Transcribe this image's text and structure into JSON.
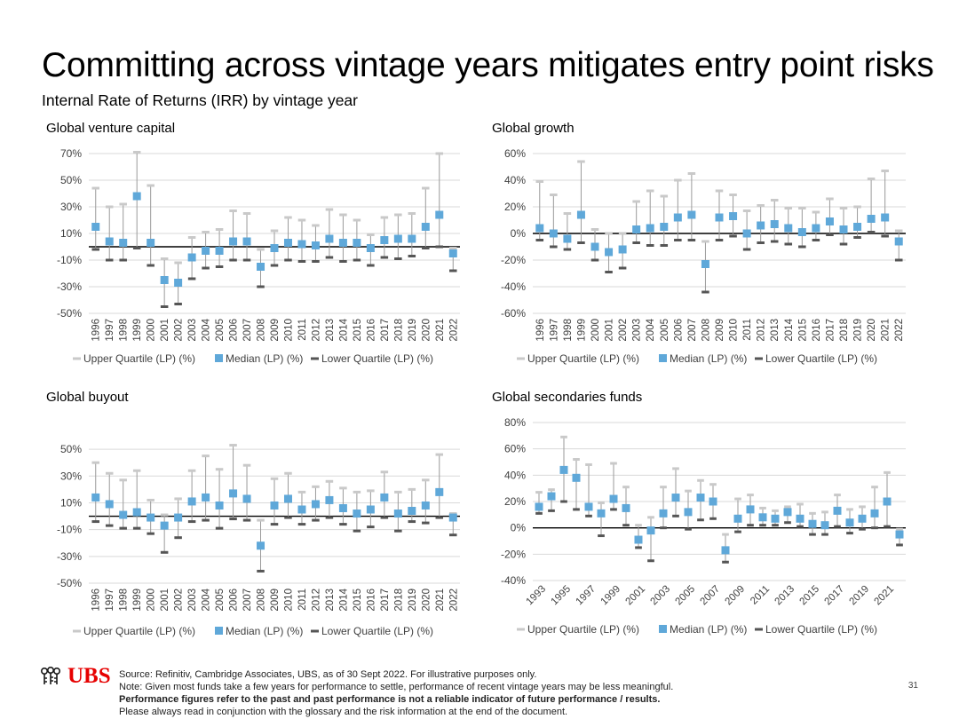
{
  "header": {
    "title": "Committing across vintage years mitigates entry point risks",
    "subtitle": "Internal Rate of Returns (IRR) by vintage year"
  },
  "legend": {
    "upper": "Upper Quartile (LP) (%)",
    "median": "Median (LP) (%)",
    "lower": "Lower Quartile (LP) (%)"
  },
  "colors": {
    "upper": "#c9c9c9",
    "median": "#5fa8d9",
    "lower": "#555555",
    "grid": "#d9d9d9",
    "zero": "#000000",
    "brand": "#e60000"
  },
  "chart_data": [
    {
      "id": "vc",
      "type": "scatter",
      "title": "Global venture capital",
      "categories": [
        "1996",
        "1997",
        "1998",
        "1999",
        "2000",
        "2001",
        "2002",
        "2003",
        "2004",
        "2005",
        "2006",
        "2007",
        "2008",
        "2009",
        "2010",
        "2011",
        "2012",
        "2013",
        "2014",
        "2015",
        "2016",
        "2017",
        "2018",
        "2019",
        "2020",
        "2021",
        "2022"
      ],
      "y_ticks": [
        -50,
        -30,
        -10,
        10,
        30,
        50,
        70
      ],
      "y_tick_labels": [
        "-50%",
        "-30%",
        "-10%",
        "10%",
        "30%",
        "50%",
        "70%"
      ],
      "ylim": [
        -50,
        70
      ],
      "series": [
        {
          "name": "Upper Quartile (LP) (%)",
          "values": [
            44,
            30,
            32,
            71,
            46,
            -9,
            -12,
            7,
            11,
            13,
            27,
            25,
            -2,
            12,
            22,
            20,
            16,
            28,
            24,
            20,
            9,
            22,
            24,
            25,
            44,
            70,
            -1
          ]
        },
        {
          "name": "Median (LP) (%)",
          "values": [
            15,
            4,
            3,
            38,
            3,
            -25,
            -27,
            -8,
            -3,
            -3,
            4,
            4,
            -15,
            -1,
            3,
            2,
            1,
            6,
            3,
            3,
            -1,
            5,
            6,
            6,
            15,
            24,
            -5
          ]
        },
        {
          "name": "Lower Quartile (LP) (%)",
          "values": [
            -2,
            -10,
            -10,
            -1,
            -14,
            -45,
            -43,
            -24,
            -16,
            -15,
            -10,
            -10,
            -30,
            -14,
            -10,
            -11,
            -11,
            -8,
            -11,
            -10,
            -14,
            -8,
            -9,
            -7,
            -1,
            0,
            -18
          ]
        }
      ]
    },
    {
      "id": "growth",
      "type": "scatter",
      "title": "Global growth",
      "categories": [
        "1996",
        "1997",
        "1998",
        "1999",
        "2000",
        "2001",
        "2002",
        "2003",
        "2004",
        "2005",
        "2006",
        "2007",
        "2008",
        "2009",
        "2010",
        "2011",
        "2012",
        "2013",
        "2014",
        "2015",
        "2016",
        "2017",
        "2018",
        "2019",
        "2020",
        "2021",
        "2022"
      ],
      "y_ticks": [
        -60,
        -40,
        -20,
        0,
        20,
        40,
        60
      ],
      "y_tick_labels": [
        "-60%",
        "-40%",
        "-20%",
        "0%",
        "20%",
        "40%",
        "60%"
      ],
      "ylim": [
        -60,
        60
      ],
      "series": [
        {
          "name": "Upper Quartile (LP) (%)",
          "values": [
            39,
            29,
            15,
            54,
            3,
            0,
            0,
            24,
            32,
            28,
            40,
            45,
            -6,
            32,
            29,
            17,
            21,
            25,
            19,
            19,
            16,
            26,
            19,
            20,
            41,
            47,
            2
          ]
        },
        {
          "name": "Median (LP) (%)",
          "values": [
            4,
            0,
            -4,
            14,
            -10,
            -14,
            -12,
            3,
            4,
            5,
            12,
            14,
            -23,
            12,
            13,
            0,
            6,
            7,
            4,
            1,
            4,
            9,
            3,
            5,
            11,
            12,
            -6
          ]
        },
        {
          "name": "Lower Quartile (LP) (%)",
          "values": [
            -5,
            -10,
            -12,
            -7,
            -20,
            -29,
            -26,
            -7,
            -9,
            -9,
            -5,
            -5,
            -44,
            -5,
            -2,
            -12,
            -7,
            -6,
            -8,
            -10,
            -5,
            -1,
            -8,
            -3,
            1,
            -2,
            -20
          ]
        }
      ]
    },
    {
      "id": "buyout",
      "type": "scatter",
      "title": "Global buyout",
      "categories": [
        "1996",
        "1997",
        "1998",
        "1999",
        "2000",
        "2001",
        "2002",
        "2003",
        "2004",
        "2005",
        "2006",
        "2007",
        "2008",
        "2009",
        "2010",
        "2011",
        "2012",
        "2013",
        "2014",
        "2015",
        "2016",
        "2017",
        "2018",
        "2019",
        "2020",
        "2021",
        "2022"
      ],
      "y_ticks": [
        -50,
        -30,
        -10,
        10,
        30,
        50
      ],
      "y_tick_labels": [
        "-50%",
        "-30%",
        "-10%",
        "10%",
        "30%",
        "50%"
      ],
      "ylim": [
        -50,
        60
      ],
      "series": [
        {
          "name": "Upper Quartile (LP) (%)",
          "values": [
            40,
            32,
            27,
            34,
            12,
            1,
            13,
            34,
            45,
            35,
            53,
            38,
            -3,
            28,
            32,
            18,
            22,
            26,
            21,
            18,
            19,
            33,
            18,
            20,
            27,
            46,
            2
          ]
        },
        {
          "name": "Median (LP) (%)",
          "values": [
            14,
            9,
            1,
            3,
            -1,
            -7,
            -1,
            11,
            14,
            8,
            17,
            13,
            -22,
            8,
            13,
            5,
            9,
            12,
            6,
            2,
            5,
            14,
            2,
            4,
            8,
            18,
            -1
          ]
        },
        {
          "name": "Lower Quartile (LP) (%)",
          "values": [
            -4,
            -7,
            -9,
            -9,
            -13,
            -27,
            -16,
            -4,
            -3,
            -9,
            -2,
            -3,
            -41,
            -6,
            -1,
            -6,
            -3,
            -1,
            -6,
            -11,
            -8,
            -1,
            -11,
            -4,
            -5,
            -1,
            -14
          ]
        }
      ]
    },
    {
      "id": "secondaries",
      "type": "scatter",
      "title": "Global secondaries funds",
      "categories": [
        "1993",
        "1994",
        "1995",
        "1996",
        "1997",
        "1998",
        "1999",
        "2000",
        "2001",
        "2002",
        "2003",
        "2004",
        "2005",
        "2006",
        "2007",
        "2008",
        "2009",
        "2010",
        "2011",
        "2012",
        "2013",
        "2014",
        "2015",
        "2016",
        "2017",
        "2018",
        "2019",
        "2020",
        "2021",
        "2022"
      ],
      "x_tick_labels": [
        "1993",
        "",
        "1995",
        "",
        "1997",
        "",
        "1999",
        "",
        "2001",
        "",
        "2003",
        "",
        "2005",
        "",
        "2007",
        "",
        "2009",
        "",
        "2011",
        "",
        "2013",
        "",
        "2015",
        "",
        "2017",
        "",
        "2019",
        "",
        "2021",
        ""
      ],
      "y_ticks": [
        -40,
        -20,
        0,
        20,
        40,
        60,
        80
      ],
      "y_tick_labels": [
        "-40%",
        "-20%",
        "0%",
        "20%",
        "40%",
        "60%",
        "80%"
      ],
      "ylim": [
        -40,
        80
      ],
      "series": [
        {
          "name": "Upper Quartile (LP) (%)",
          "values": [
            27,
            29,
            69,
            52,
            48,
            19,
            49,
            31,
            2,
            8,
            31,
            45,
            28,
            36,
            33,
            -5,
            22,
            25,
            15,
            13,
            16,
            18,
            11,
            12,
            25,
            14,
            16,
            31,
            42,
            -1
          ]
        },
        {
          "name": "Median (LP) (%)",
          "values": [
            16,
            24,
            44,
            38,
            16,
            11,
            22,
            15,
            -9,
            -2,
            11,
            23,
            12,
            23,
            20,
            -17,
            7,
            14,
            8,
            7,
            12,
            7,
            3,
            2,
            13,
            4,
            7,
            11,
            20,
            -5
          ]
        },
        {
          "name": "Lower Quartile (LP) (%)",
          "values": [
            11,
            13,
            20,
            14,
            9,
            -6,
            14,
            2,
            -15,
            -25,
            0,
            9,
            -1,
            6,
            7,
            -26,
            -3,
            2,
            2,
            2,
            4,
            1,
            -5,
            -5,
            1,
            -4,
            -1,
            0,
            1,
            -13
          ]
        }
      ]
    }
  ],
  "footer": {
    "source": "Source: Refinitiv, Cambridge Associates, UBS, as of 30 Sept 2022. For illustrative purposes only.",
    "note": "Note: Given most funds take a few years for performance to settle, performance of recent vintage years may be less meaningful.",
    "disclaimer": "Performance figures refer to the past and past performance is not a reliable indicator of future performance / results.",
    "glossary": "Please always read in conjunction with the glossary and the risk information at the end of the document."
  },
  "logo": {
    "text": "UBS"
  },
  "page_number": "31"
}
